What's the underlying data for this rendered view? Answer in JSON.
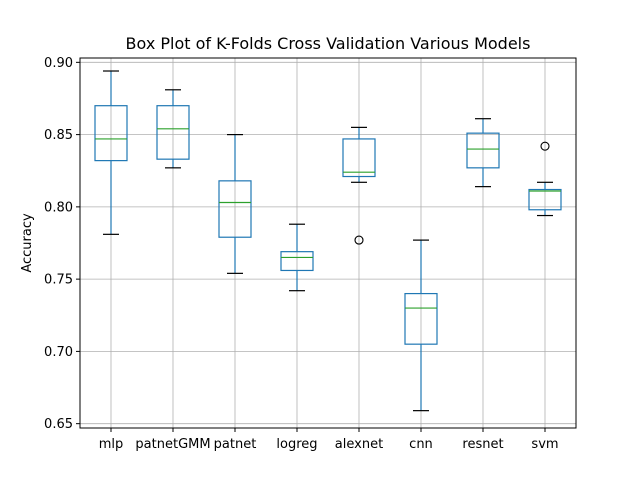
{
  "chart_data": {
    "type": "box",
    "title": "Box Plot of K-Folds Cross Validation Various Models",
    "xlabel": "",
    "ylabel": "Accuracy",
    "ylim": [
      0.647,
      0.903
    ],
    "yticks": [
      0.65,
      0.7,
      0.75,
      0.8,
      0.85,
      0.9
    ],
    "ytick_labels": [
      "0.65",
      "0.70",
      "0.75",
      "0.80",
      "0.85",
      "0.90"
    ],
    "grid": true,
    "categories": [
      "mlp",
      "patnetGMM",
      "patnet",
      "logreg",
      "alexnet",
      "cnn",
      "resnet",
      "svm"
    ],
    "series": [
      {
        "category": "mlp",
        "whisker_low": 0.781,
        "q1": 0.832,
        "median": 0.847,
        "q3": 0.87,
        "whisker_high": 0.894,
        "outliers": []
      },
      {
        "category": "patnetGMM",
        "whisker_low": 0.827,
        "q1": 0.833,
        "median": 0.854,
        "q3": 0.87,
        "whisker_high": 0.881,
        "outliers": []
      },
      {
        "category": "patnet",
        "whisker_low": 0.754,
        "q1": 0.779,
        "median": 0.803,
        "q3": 0.818,
        "whisker_high": 0.85,
        "outliers": []
      },
      {
        "category": "logreg",
        "whisker_low": 0.742,
        "q1": 0.756,
        "median": 0.765,
        "q3": 0.769,
        "whisker_high": 0.788,
        "outliers": []
      },
      {
        "category": "alexnet",
        "whisker_low": 0.817,
        "q1": 0.821,
        "median": 0.824,
        "q3": 0.847,
        "whisker_high": 0.855,
        "outliers": [
          0.777
        ]
      },
      {
        "category": "cnn",
        "whisker_low": 0.659,
        "q1": 0.705,
        "median": 0.73,
        "q3": 0.74,
        "whisker_high": 0.777,
        "outliers": []
      },
      {
        "category": "resnet",
        "whisker_low": 0.814,
        "q1": 0.827,
        "median": 0.84,
        "q3": 0.851,
        "whisker_high": 0.861,
        "outliers": []
      },
      {
        "category": "svm",
        "whisker_low": 0.794,
        "q1": 0.798,
        "median": 0.811,
        "q3": 0.812,
        "whisker_high": 0.817,
        "outliers": [
          0.842
        ]
      }
    ],
    "colors": {
      "box": "#1f77b4",
      "whisker": "#1f77b4",
      "cap": "#000000",
      "median": "#2ca02c",
      "outlier": "#000000",
      "grid": "#b0b0b0",
      "axes": "#000000"
    }
  }
}
